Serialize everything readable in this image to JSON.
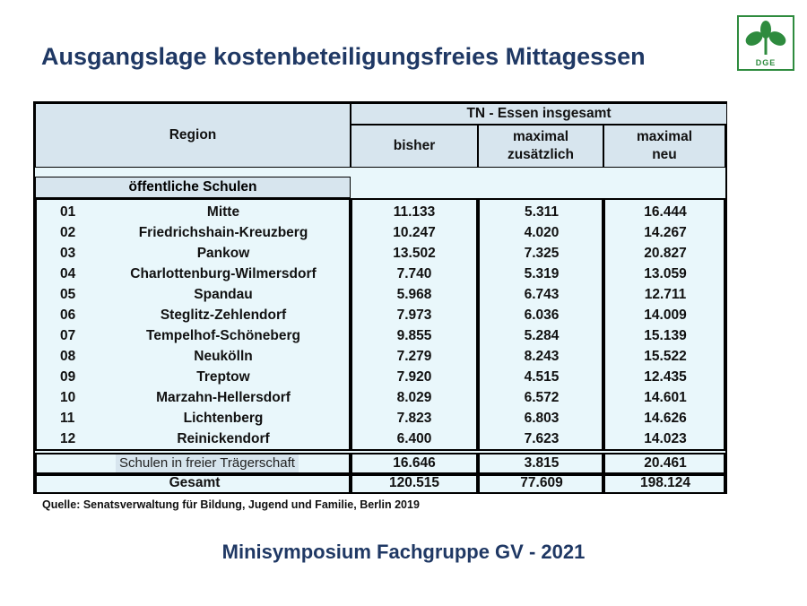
{
  "title": "Ausgangslage kostenbeteiligungsfreies Mittagessen",
  "logo": {
    "text": "DGE",
    "icon": "dge-plant-logo",
    "color": "#2e8b3e"
  },
  "table": {
    "header_region": "Region",
    "header_group": "TN - Essen insgesamt",
    "col_bisher": "bisher",
    "col_max_zus_1": "maximal",
    "col_max_zus_2": "zusätzlich",
    "col_max_neu_1": "maximal",
    "col_max_neu_2": "neu",
    "section_label": "öffentliche Schulen",
    "rows": [
      {
        "nr": "01",
        "region": "Mitte",
        "bisher": "11.133",
        "zusaetzlich": "5.311",
        "neu": "16.444"
      },
      {
        "nr": "02",
        "region": "Friedrichshain-Kreuzberg",
        "bisher": "10.247",
        "zusaetzlich": "4.020",
        "neu": "14.267"
      },
      {
        "nr": "03",
        "region": "Pankow",
        "bisher": "13.502",
        "zusaetzlich": "7.325",
        "neu": "20.827"
      },
      {
        "nr": "04",
        "region": "Charlottenburg-Wilmersdorf",
        "bisher": "7.740",
        "zusaetzlich": "5.319",
        "neu": "13.059"
      },
      {
        "nr": "05",
        "region": "Spandau",
        "bisher": "5.968",
        "zusaetzlich": "6.743",
        "neu": "12.711"
      },
      {
        "nr": "06",
        "region": "Steglitz-Zehlendorf",
        "bisher": "7.973",
        "zusaetzlich": "6.036",
        "neu": "14.009"
      },
      {
        "nr": "07",
        "region": "Tempelhof-Schöneberg",
        "bisher": "9.855",
        "zusaetzlich": "5.284",
        "neu": "15.139"
      },
      {
        "nr": "08",
        "region": "Neukölln",
        "bisher": "7.279",
        "zusaetzlich": "8.243",
        "neu": "15.522"
      },
      {
        "nr": "09",
        "region": "Treptow",
        "bisher": "7.920",
        "zusaetzlich": "4.515",
        "neu": "12.435"
      },
      {
        "nr": "10",
        "region": "Marzahn-Hellersdorf",
        "bisher": "8.029",
        "zusaetzlich": "6.572",
        "neu": "14.601"
      },
      {
        "nr": "11",
        "region": "Lichtenberg",
        "bisher": "7.823",
        "zusaetzlich": "6.803",
        "neu": "14.626"
      },
      {
        "nr": "12",
        "region": "Reinickendorf",
        "bisher": "6.400",
        "zusaetzlich": "7.623",
        "neu": "14.023"
      }
    ],
    "traeger": {
      "label": "Schulen in freier Trägerschaft",
      "bisher": "16.646",
      "zusaetzlich": "3.815",
      "neu": "20.461"
    },
    "total": {
      "label": "Gesamt",
      "bisher": "120.515",
      "zusaetzlich": "77.609",
      "neu": "198.124"
    }
  },
  "source": "Quelle: Senatsverwaltung für Bildung, Jugend und Familie, Berlin 2019",
  "footer": "Minisymposium Fachgruppe GV - 2021",
  "colors": {
    "title": "#1f3864",
    "table_bg": "#e9f7fb",
    "header_bg": "#d7e5ee"
  }
}
